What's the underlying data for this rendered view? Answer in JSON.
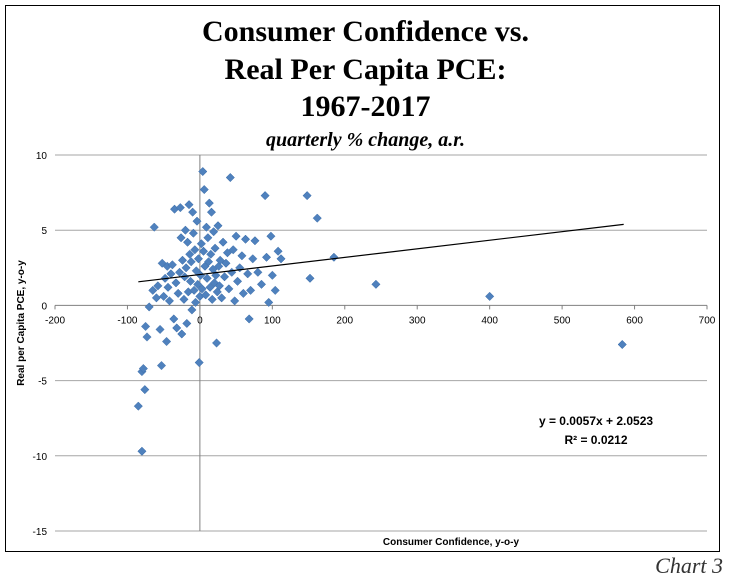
{
  "chart_data": {
    "type": "scatter",
    "title_lines": [
      "Consumer Confidence vs.",
      "Real Per Capita PCE:",
      "1967-2017"
    ],
    "subtitle": "quarterly % change, a.r.",
    "xlabel": "Consumer Confidence, y-o-y",
    "ylabel": "Real per Capita PCE, y-o-y",
    "xlim": [
      -200,
      700
    ],
    "ylim": [
      -15,
      10
    ],
    "x_ticks": [
      -200,
      -100,
      0,
      100,
      200,
      300,
      400,
      500,
      600,
      700
    ],
    "y_ticks": [
      10,
      5,
      0,
      -5,
      -10,
      -15
    ],
    "grid": "horizontal",
    "marker_color": "#4f81bd",
    "trendline": {
      "slope": 0.0057,
      "intercept": 2.0523,
      "x_range": [
        -85,
        585
      ]
    },
    "equation_text": "y = 0.0057x + 2.0523",
    "r2_text": "R² = 0.0212",
    "points": [
      [
        -85,
        -6.7
      ],
      [
        -80,
        -9.7
      ],
      [
        -80,
        -4.4
      ],
      [
        -78,
        -4.2
      ],
      [
        -76,
        -5.6
      ],
      [
        -75,
        -1.4
      ],
      [
        -73,
        -2.1
      ],
      [
        -70,
        -0.1
      ],
      [
        -65,
        1.0
      ],
      [
        -63,
        5.2
      ],
      [
        -60,
        0.5
      ],
      [
        -58,
        1.3
      ],
      [
        -55,
        -1.6
      ],
      [
        -53,
        -4.0
      ],
      [
        -52,
        2.8
      ],
      [
        -50,
        0.6
      ],
      [
        -48,
        1.8
      ],
      [
        -46,
        -2.4
      ],
      [
        -45,
        2.6
      ],
      [
        -44,
        1.2
      ],
      [
        -42,
        0.3
      ],
      [
        -40,
        2.1
      ],
      [
        -38,
        2.7
      ],
      [
        -36,
        -0.9
      ],
      [
        -35,
        6.4
      ],
      [
        -33,
        1.5
      ],
      [
        -32,
        -1.5
      ],
      [
        -30,
        0.8
      ],
      [
        -28,
        2.2
      ],
      [
        -27,
        6.5
      ],
      [
        -26,
        4.5
      ],
      [
        -25,
        -1.9
      ],
      [
        -24,
        3.0
      ],
      [
        -22,
        0.4
      ],
      [
        -21,
        1.9
      ],
      [
        -20,
        5.0
      ],
      [
        -19,
        2.5
      ],
      [
        -18,
        -1.2
      ],
      [
        -17,
        4.2
      ],
      [
        -16,
        0.9
      ],
      [
        -15,
        6.7
      ],
      [
        -14,
        3.4
      ],
      [
        -13,
        1.6
      ],
      [
        -12,
        2.9
      ],
      [
        -11,
        -0.3
      ],
      [
        -10,
        6.2
      ],
      [
        -9,
        4.8
      ],
      [
        -8,
        1.0
      ],
      [
        -7,
        3.7
      ],
      [
        -6,
        0.2
      ],
      [
        -5,
        2.3
      ],
      [
        -4,
        5.6
      ],
      [
        -3,
        1.4
      ],
      [
        -2,
        3.1
      ],
      [
        -1,
        -3.8
      ],
      [
        0,
        0.6
      ],
      [
        1,
        2.0
      ],
      [
        2,
        4.1
      ],
      [
        3,
        1.1
      ],
      [
        4,
        8.9
      ],
      [
        5,
        3.6
      ],
      [
        6,
        7.7
      ],
      [
        7,
        2.6
      ],
      [
        8,
        0.7
      ],
      [
        9,
        5.2
      ],
      [
        10,
        1.8
      ],
      [
        11,
        4.5
      ],
      [
        12,
        2.9
      ],
      [
        13,
        6.8
      ],
      [
        14,
        1.2
      ],
      [
        15,
        3.4
      ],
      [
        16,
        6.2
      ],
      [
        17,
        0.4
      ],
      [
        18,
        2.4
      ],
      [
        19,
        4.9
      ],
      [
        20,
        1.5
      ],
      [
        21,
        3.8
      ],
      [
        22,
        2.0
      ],
      [
        23,
        -2.5
      ],
      [
        24,
        0.9
      ],
      [
        25,
        5.3
      ],
      [
        26,
        2.6
      ],
      [
        27,
        1.3
      ],
      [
        28,
        3.0
      ],
      [
        30,
        0.5
      ],
      [
        32,
        4.2
      ],
      [
        34,
        1.9
      ],
      [
        36,
        2.8
      ],
      [
        38,
        3.5
      ],
      [
        40,
        1.1
      ],
      [
        42,
        8.5
      ],
      [
        44,
        2.2
      ],
      [
        46,
        3.7
      ],
      [
        48,
        0.3
      ],
      [
        50,
        4.6
      ],
      [
        52,
        1.6
      ],
      [
        55,
        2.5
      ],
      [
        58,
        3.3
      ],
      [
        60,
        0.8
      ],
      [
        63,
        4.4
      ],
      [
        66,
        2.1
      ],
      [
        68,
        -0.9
      ],
      [
        70,
        1.0
      ],
      [
        73,
        3.1
      ],
      [
        76,
        4.3
      ],
      [
        80,
        2.2
      ],
      [
        85,
        1.4
      ],
      [
        90,
        7.3
      ],
      [
        92,
        3.2
      ],
      [
        95,
        0.2
      ],
      [
        98,
        4.6
      ],
      [
        100,
        2.0
      ],
      [
        104,
        1.0
      ],
      [
        108,
        3.6
      ],
      [
        112,
        3.1
      ],
      [
        148,
        7.3
      ],
      [
        152,
        1.8
      ],
      [
        162,
        5.8
      ],
      [
        185,
        3.2
      ],
      [
        243,
        1.4
      ],
      [
        400,
        0.6
      ],
      [
        583,
        -2.6
      ]
    ]
  }
}
